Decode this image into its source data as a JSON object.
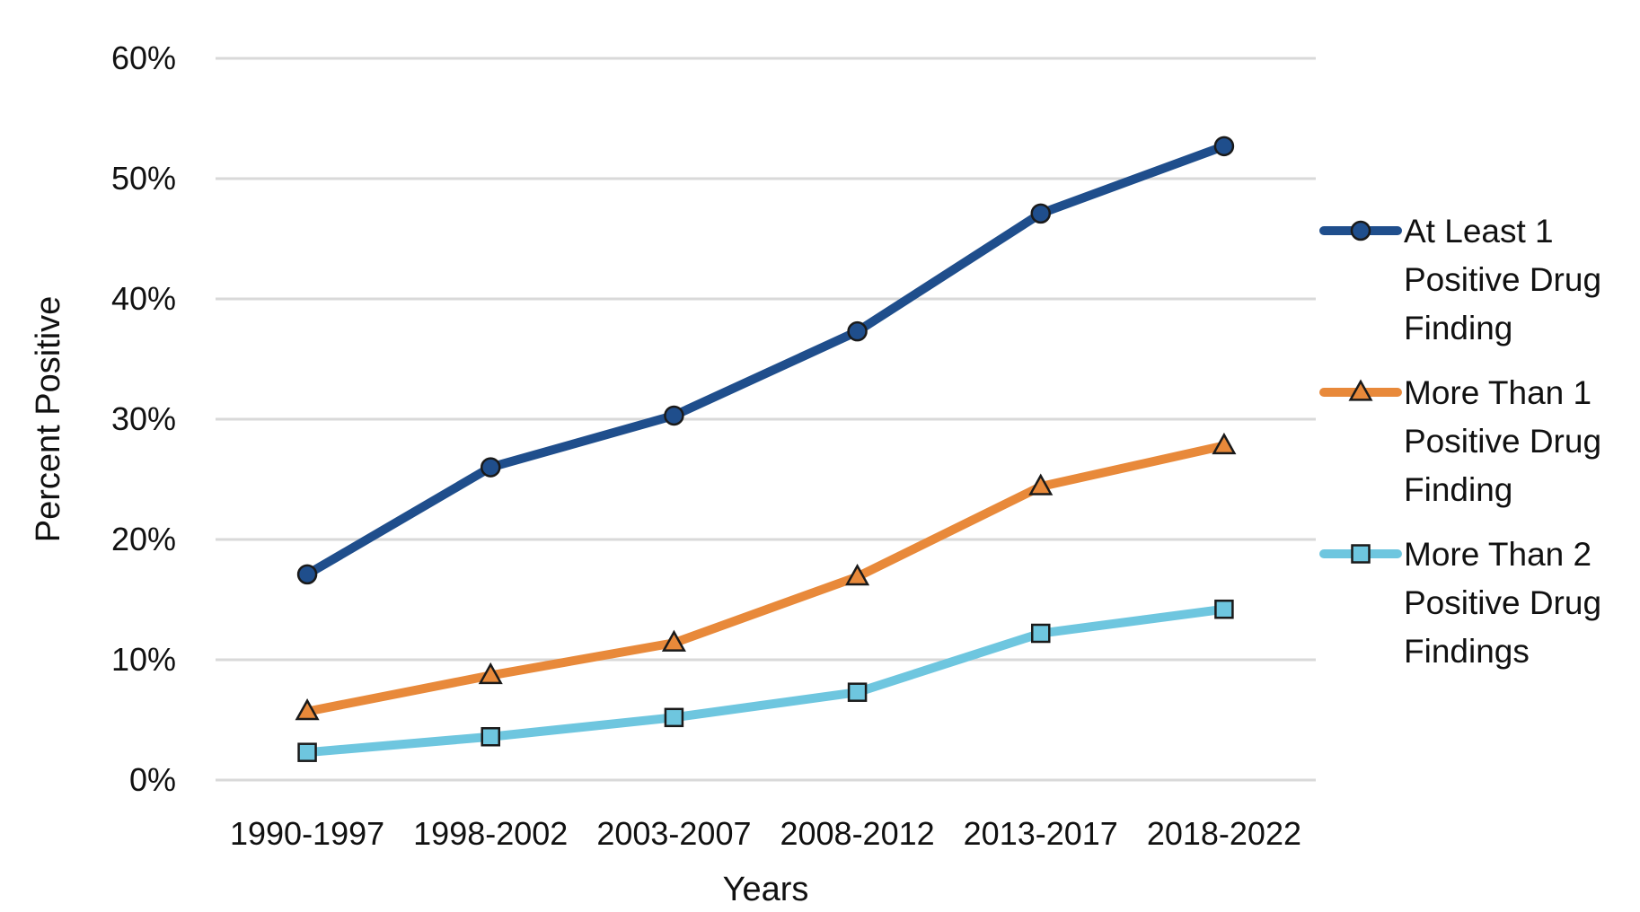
{
  "chart_data": {
    "type": "line",
    "title": "",
    "xlabel": "Years",
    "ylabel": "Percent Positive",
    "categories": [
      "1990-1997",
      "1998-2002",
      "2003-2007",
      "2008-2012",
      "2013-2017",
      "2018-2022"
    ],
    "ylim": [
      0,
      60
    ],
    "yticks": [
      0,
      10,
      20,
      30,
      40,
      50,
      60
    ],
    "ytick_labels": [
      "0%",
      "10%",
      "20%",
      "30%",
      "40%",
      "50%",
      "60%"
    ],
    "grid": true,
    "legend_position": "right",
    "series": [
      {
        "name": "At Least 1 Positive Drug Finding",
        "legend_lines": [
          "At Least 1",
          "Positive Drug",
          "Finding"
        ],
        "marker": "circle",
        "color": "#1F4E8C",
        "values": [
          17.1,
          26.0,
          30.3,
          37.3,
          47.1,
          52.7
        ]
      },
      {
        "name": "More Than 1 Positive Drug Finding",
        "legend_lines": [
          "More Than 1",
          "Positive Drug",
          "Finding"
        ],
        "marker": "triangle",
        "color": "#E8893A",
        "values": [
          5.7,
          8.7,
          11.4,
          16.9,
          24.4,
          27.8
        ]
      },
      {
        "name": "More Than 2 Positive Drug Findings",
        "legend_lines": [
          "More Than 2",
          "Positive Drug",
          "Findings"
        ],
        "marker": "square",
        "color": "#6EC6DF",
        "values": [
          2.3,
          3.6,
          5.2,
          7.3,
          12.2,
          14.2
        ]
      }
    ]
  }
}
